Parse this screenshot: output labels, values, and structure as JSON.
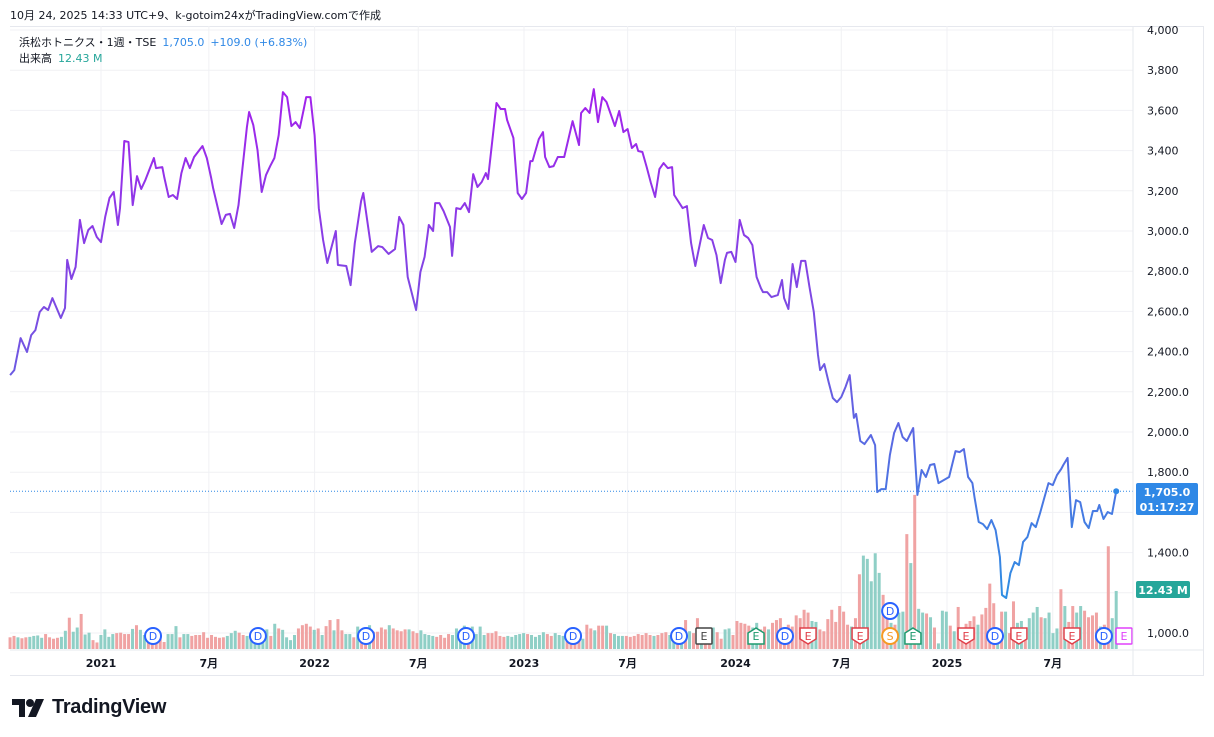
{
  "header": {
    "caption": "10月 24, 2025 14:33 UTC+9、k-gotoim24xがTradingView.comで作成"
  },
  "legend": {
    "symbol": "浜松ホトニクス・1週・TSE",
    "last": "1,705.0",
    "change": "+109.0 (+6.83%)",
    "volume_label": "出来高",
    "volume_value": "12.43 M"
  },
  "badges": {
    "price": "1,705.0",
    "countdown": "01:17:27",
    "volume": "12.43 M"
  },
  "logo": {
    "text": "TradingView"
  },
  "colors": {
    "price_top": "#a321ec",
    "price_mid": "#7a4de2",
    "price_bottom": "#2e8fe3",
    "up": "#8fcfc6",
    "down": "#f0a3a3",
    "price_badge": "#2f88e6",
    "volume_badge": "#26a69a",
    "dividend": "#2962ff",
    "split": "#f59a23"
  },
  "chart_data": {
    "type": "line",
    "title": "浜松ホトニクス・1週・TSE",
    "xlabel": "",
    "ylabel": "",
    "ylim": [
      1000,
      4000
    ],
    "grid": true,
    "y_ticks": [
      {
        "value": 4000,
        "label": "4,000"
      },
      {
        "value": 3800,
        "label": "3,800"
      },
      {
        "value": 3600,
        "label": "3,600"
      },
      {
        "value": 3400,
        "label": "3,400"
      },
      {
        "value": 3200,
        "label": "3,200"
      },
      {
        "value": 3000,
        "label": "3,000.0"
      },
      {
        "value": 2800,
        "label": "2,800.0"
      },
      {
        "value": 2600,
        "label": "2,600.0"
      },
      {
        "value": 2400,
        "label": "2,400.0"
      },
      {
        "value": 2200,
        "label": "2,200.0"
      },
      {
        "value": 2000,
        "label": "2,000.0"
      },
      {
        "value": 1800,
        "label": "1,800.0"
      },
      {
        "value": 1400,
        "label": "1,400.0"
      },
      {
        "value": 1000,
        "label": "1,000.0"
      }
    ],
    "x_ticks": [
      {
        "at": 2021.0,
        "label": "2021"
      },
      {
        "at": 2021.51,
        "label": "7月"
      },
      {
        "at": 2022.01,
        "label": "2022"
      },
      {
        "at": 2022.5,
        "label": "7月"
      },
      {
        "at": 2023.0,
        "label": "2023"
      },
      {
        "at": 2023.49,
        "label": "7月"
      },
      {
        "at": 2024.0,
        "label": "2024"
      },
      {
        "at": 2024.5,
        "label": "7月"
      },
      {
        "at": 2025.0,
        "label": "2025"
      },
      {
        "at": 2025.5,
        "label": "7月"
      }
    ],
    "last_price": 1705.0,
    "series": [
      {
        "name": "Close",
        "x": [
          2020.57,
          2020.59,
          2020.62,
          2020.65,
          2020.67,
          2020.69,
          2020.71,
          2020.73,
          2020.75,
          2020.77,
          2020.81,
          2020.83,
          2020.84,
          2020.86,
          2020.88,
          2020.9,
          2020.92,
          2020.94,
          2020.96,
          2020.98,
          2021.0,
          2021.02,
          2021.04,
          2021.06,
          2021.08,
          2021.09,
          2021.11,
          2021.13,
          2021.15,
          2021.17,
          2021.19,
          2021.21,
          2021.25,
          2021.26,
          2021.29,
          2021.3,
          2021.32,
          2021.34,
          2021.36,
          2021.38,
          2021.4,
          2021.42,
          2021.44,
          2021.48,
          2021.5,
          2021.52,
          2021.53,
          2021.57,
          2021.59,
          2021.61,
          2021.63,
          2021.65,
          2021.69,
          2021.7,
          2021.72,
          2021.74,
          2021.76,
          2021.78,
          2021.8,
          2021.82,
          2021.84,
          2021.86,
          2021.88,
          2021.9,
          2021.92,
          2021.94,
          2021.96,
          2021.97,
          2021.99,
          2022.01,
          2022.03,
          2022.05,
          2022.07,
          2022.11,
          2022.12,
          2022.16,
          2022.18,
          2022.2,
          2022.23,
          2022.24,
          2022.28,
          2022.31,
          2022.33,
          2022.36,
          2022.39,
          2022.41,
          2022.43,
          2022.45,
          2022.49,
          2022.51,
          2022.53,
          2022.55,
          2022.57,
          2022.58,
          2022.6,
          2022.62,
          2022.65,
          2022.66,
          2022.68,
          2022.7,
          2022.72,
          2022.74,
          2022.76,
          2022.78,
          2022.8,
          2022.82,
          2022.83,
          2022.87,
          2022.89,
          2022.91,
          2022.92,
          2022.95,
          2022.97,
          2022.99,
          2023.01,
          2023.03,
          2023.04,
          2023.07,
          2023.09,
          2023.1,
          2023.12,
          2023.14,
          2023.16,
          2023.19,
          2023.21,
          2023.23,
          2023.26,
          2023.27,
          2023.29,
          2023.31,
          2023.33,
          2023.35,
          2023.37,
          2023.39,
          2023.43,
          2023.45,
          2023.47,
          2023.49,
          2023.51,
          2023.53,
          2023.54,
          2023.56,
          2023.58,
          2023.6,
          2023.62,
          2023.64,
          2023.66,
          2023.68,
          2023.7,
          2023.71,
          2023.75,
          2023.77,
          2023.79,
          2023.81,
          2023.85,
          2023.87,
          2023.89,
          2023.91,
          2023.93,
          2023.95,
          2023.96,
          2023.98,
          2024.0,
          2024.02,
          2024.04,
          2024.06,
          2024.08,
          2024.1,
          2024.12,
          2024.13,
          2024.15,
          2024.17,
          2024.2,
          2024.22,
          2024.23,
          2024.25,
          2024.27,
          2024.29,
          2024.31,
          2024.33,
          2024.35,
          2024.37,
          2024.39,
          2024.4,
          2024.42,
          2024.44,
          2024.46,
          2024.48,
          2024.5,
          2024.52,
          2024.54,
          2024.56,
          2024.57,
          2024.59,
          2024.61,
          2024.64,
          2024.66,
          2024.67,
          2024.69,
          2024.71,
          2024.73,
          2024.75,
          2024.77,
          2024.79,
          2024.81,
          2024.84,
          2024.86,
          2024.88,
          2024.9,
          2024.92,
          2024.94,
          2024.96,
          2025.01,
          2025.04,
          2025.06,
          2025.08,
          2025.1,
          2025.12,
          2025.13,
          2025.15,
          2025.17,
          2025.19,
          2025.21,
          2025.23,
          2025.25,
          2025.26,
          2025.28,
          2025.3,
          2025.32,
          2025.34,
          2025.36,
          2025.38,
          2025.4,
          2025.42,
          2025.44,
          2025.46,
          2025.48,
          2025.5,
          2025.52,
          2025.54,
          2025.55,
          2025.57,
          2025.59,
          2025.61,
          2025.63,
          2025.65,
          2025.67,
          2025.69,
          2025.71,
          2025.72,
          2025.74,
          2025.76,
          2025.78,
          2025.8
        ],
        "y": [
          2283,
          2308,
          2467,
          2398,
          2482,
          2507,
          2597,
          2622,
          2607,
          2666,
          2567,
          2617,
          2856,
          2761,
          2821,
          3055,
          2940,
          3005,
          3025,
          2970,
          2945,
          3070,
          3164,
          3194,
          3030,
          3114,
          3448,
          3443,
          3129,
          3273,
          3209,
          3254,
          3363,
          3313,
          3318,
          3264,
          3169,
          3179,
          3159,
          3288,
          3363,
          3313,
          3368,
          3423,
          3363,
          3268,
          3214,
          3035,
          3080,
          3085,
          3015,
          3129,
          3517,
          3592,
          3527,
          3403,
          3194,
          3278,
          3323,
          3363,
          3477,
          3691,
          3666,
          3522,
          3542,
          3512,
          3612,
          3666,
          3666,
          3477,
          3114,
          2955,
          2841,
          3000,
          2831,
          2826,
          2731,
          2940,
          3149,
          3189,
          2896,
          2925,
          2920,
          2886,
          2910,
          3070,
          3030,
          2771,
          2607,
          2796,
          2871,
          3030,
          3000,
          3139,
          3139,
          3099,
          3020,
          2876,
          3114,
          3109,
          3139,
          3094,
          3283,
          3219,
          3244,
          3288,
          3258,
          3637,
          3607,
          3607,
          3552,
          3463,
          3189,
          3159,
          3189,
          3348,
          3348,
          3457,
          3492,
          3368,
          3318,
          3323,
          3368,
          3368,
          3457,
          3547,
          3428,
          3587,
          3612,
          3587,
          3706,
          3542,
          3666,
          3642,
          3522,
          3597,
          3492,
          3507,
          3413,
          3433,
          3398,
          3393,
          3318,
          3239,
          3169,
          3308,
          3338,
          3313,
          3318,
          3179,
          3114,
          3124,
          2940,
          2826,
          3030,
          2965,
          2955,
          2880,
          2741,
          2856,
          2891,
          2896,
          2846,
          3055,
          2980,
          2965,
          2930,
          2771,
          2716,
          2696,
          2696,
          2671,
          2681,
          2756,
          2666,
          2612,
          2836,
          2721,
          2851,
          2851,
          2721,
          2597,
          2383,
          2308,
          2338,
          2249,
          2169,
          2149,
          2174,
          2224,
          2283,
          2070,
          2090,
          1955,
          1940,
          1985,
          1935,
          1701,
          1716,
          1716,
          1886,
          1995,
          2045,
          1975,
          1955,
          2020,
          1687,
          1811,
          1776,
          1836,
          1841,
          1746,
          1776,
          1905,
          1900,
          1915,
          1776,
          1746,
          1676,
          1552,
          1542,
          1517,
          1562,
          1512,
          1378,
          1189,
          1174,
          1298,
          1353,
          1338,
          1453,
          1477,
          1547,
          1527,
          1597,
          1672,
          1746,
          1736,
          1786,
          1816,
          1836,
          1871,
          1527,
          1661,
          1651,
          1552,
          1522,
          1607,
          1607,
          1637,
          1567,
          1602,
          1592,
          1705
        ]
      },
      {
        "name": "出来高",
        "unit": "M",
        "note": "positive = up week, negative = down week",
        "x_range": [
          2020.57,
          2025.8
        ],
        "values": [
          -2.5,
          -2.8,
          2.5,
          -2.3,
          -2.5,
          2.6,
          2.8,
          2.9,
          2.4,
          -3.2,
          -2.5,
          -2.2,
          -2.4,
          2.6,
          3.9,
          -6.7,
          3.7,
          4.6,
          -7.5,
          3.1,
          3.5,
          -1.9,
          -1.4,
          3.0,
          4.2,
          2.6,
          3.2,
          -3.4,
          -3.5,
          -3.2,
          -3.2,
          4.3,
          -5.1,
          4.1,
          3.0,
          -2.8,
          -2.5,
          -2.5,
          -2.1,
          -1.5,
          3.2,
          3.2,
          4.9,
          -2.5,
          3.2,
          3.2,
          -2.8,
          -3.0,
          -3.0,
          -3.6,
          -2.4,
          -3.0,
          -2.6,
          -2.4,
          -2.5,
          2.8,
          3.4,
          3.9,
          -3.5,
          -3.0,
          2.8,
          2.5,
          2.5,
          2.8,
          4.1,
          4.2,
          -2.8,
          5.4,
          -4.4,
          4.1,
          2.5,
          1.9,
          3.0,
          -4.4,
          -5.1,
          -5.4,
          -4.8,
          4.1,
          -4.4,
          3.0,
          -4.9,
          -6.2,
          4.0,
          -6.4,
          -4.0,
          3.2,
          3.2,
          -2.5,
          4.8,
          -4.2,
          -3.7,
          5.1,
          -3.7,
          -3.7,
          -4.6,
          -4.2,
          5.1,
          -4.4,
          -4.0,
          -3.8,
          -4.2,
          4.2,
          -3.8,
          -3.4,
          4.0,
          3.2,
          3.0,
          2.8,
          -2.6,
          -3.0,
          -2.4,
          -3.2,
          3.0,
          4.4,
          3.6,
          5.0,
          -3.2,
          4.8,
          3.2,
          4.8,
          3.0,
          -3.4,
          -3.4,
          -3.8,
          -2.8,
          -2.6,
          2.8,
          2.6,
          3.0,
          3.2,
          3.4,
          -3.2,
          3.0,
          2.6,
          3.0,
          3.6,
          -3.2,
          -2.8,
          3.4,
          3.0,
          2.8,
          -2.6,
          -3.2,
          -3.4,
          -2.6,
          2.2,
          -5.2,
          -4.4,
          4.0,
          -5.0,
          -5.0,
          5.0,
          -3.4,
          3.2,
          2.8,
          2.8,
          -2.8,
          -2.6,
          -2.8,
          -3.2,
          -3.0,
          -3.4,
          -3.0,
          2.8,
          -3.0,
          -3.4,
          -3.6,
          3.0,
          3.4,
          -4.0,
          3.0,
          -6.2,
          3.8,
          -3.4,
          -6.6,
          3.0,
          -3.8,
          -4.6,
          4.6,
          -3.6,
          -2.2,
          4.2,
          4.4,
          -3.0,
          -6.0,
          -5.6,
          -5.4,
          -5.0,
          4.6,
          5.6,
          -4.2,
          -4.8,
          4.2,
          -5.6,
          -6.2,
          -6.6,
          -4.4,
          -5.2,
          -4.8,
          -7.2,
          -6.6,
          -8.4,
          -7.8,
          6.0,
          5.8,
          -4.2,
          -3.8,
          -6.4,
          -8.4,
          -5.8,
          -9.2,
          -8.0,
          -5.2,
          4.8,
          -6.6,
          -16.0,
          20.0,
          19.3,
          14.5,
          20.5,
          16.3,
          -11.6,
          -8.0,
          5.6,
          -5.2,
          7.8,
          8.0,
          -24.6,
          18.4,
          -33.0,
          8.6,
          7.8,
          -7.6,
          6.8,
          -4.6,
          1.2,
          8.2,
          8.0,
          -5.0,
          3.8,
          -9.0,
          -3.0,
          -5.4,
          -6.0,
          -7.0,
          5.2,
          -7.4,
          -8.8,
          -14.0,
          -9.8,
          4.0,
          -8.0,
          8.0,
          -3.4,
          -10.2,
          5.6,
          6.0,
          -4.2,
          6.6,
          7.8,
          9.0,
          -6.8,
          6.6,
          7.8,
          3.4,
          4.4,
          -12.8,
          9.2,
          -5.8,
          -9.2,
          7.8,
          9.2,
          -8.2,
          -6.8,
          -7.2,
          -7.8,
          4.8,
          -5.2,
          -22.0,
          6.6,
          12.43
        ]
      }
    ],
    "events": [
      {
        "at": 2021.246,
        "letter": "D",
        "kind": "dividend"
      },
      {
        "at": 2021.742,
        "letter": "D",
        "kind": "dividend"
      },
      {
        "at": 2022.253,
        "letter": "D",
        "kind": "dividend"
      },
      {
        "at": 2022.726,
        "letter": "D",
        "kind": "dividend"
      },
      {
        "at": 2023.232,
        "letter": "D",
        "kind": "dividend"
      },
      {
        "at": 2023.733,
        "letter": "D",
        "kind": "dividend"
      },
      {
        "at": 2023.851,
        "letter": "E",
        "kind": "earnings-neutral"
      },
      {
        "at": 2024.097,
        "letter": "E",
        "kind": "earnings-beat"
      },
      {
        "at": 2024.234,
        "letter": "D",
        "kind": "dividend"
      },
      {
        "at": 2024.343,
        "letter": "E",
        "kind": "earnings-miss"
      },
      {
        "at": 2024.589,
        "letter": "E",
        "kind": "earnings-miss"
      },
      {
        "at": 2024.731,
        "letter": "S",
        "kind": "split"
      },
      {
        "at": 2024.731,
        "letter": "D",
        "kind": "dividend",
        "stacked": true
      },
      {
        "at": 2024.839,
        "letter": "E",
        "kind": "earnings-beat"
      },
      {
        "at": 2025.09,
        "letter": "E",
        "kind": "earnings-miss"
      },
      {
        "at": 2025.227,
        "letter": "D",
        "kind": "dividend"
      },
      {
        "at": 2025.34,
        "letter": "E",
        "kind": "earnings-miss"
      },
      {
        "at": 2025.591,
        "letter": "E",
        "kind": "earnings-miss"
      },
      {
        "at": 2025.742,
        "letter": "D",
        "kind": "dividend"
      },
      {
        "at": 2025.837,
        "letter": "E",
        "kind": "earnings-upcoming"
      }
    ]
  }
}
